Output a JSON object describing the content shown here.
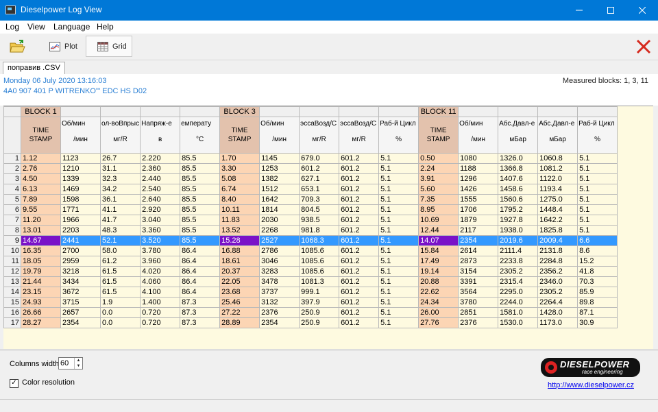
{
  "window": {
    "title": "Dieselpower Log View"
  },
  "menu": [
    "Log",
    "View",
    "Language",
    "Help"
  ],
  "toolbar": {
    "plot_label": "Plot",
    "grid_label": "Grid"
  },
  "file_tab": "поправив .CSV",
  "info": {
    "date": "Monday 06 July 2020 13:16:03",
    "ecu": "4A0 907 401 P  WITRENKO'''   EDC  HS D02",
    "measured_blocks": "Measured blocks: 1, 3, 11"
  },
  "blocks": [
    "BLOCK 1",
    "BLOCK 3",
    "BLOCK 11"
  ],
  "columns": [
    {
      "name": "TIME\nSTAMP",
      "unit": "",
      "ts": true
    },
    {
      "name": "Об/мин",
      "unit": "/мин"
    },
    {
      "name": "ол-воВпрыс",
      "unit": "мг/R"
    },
    {
      "name": "Напряж-е",
      "unit": "в"
    },
    {
      "name": "емперату",
      "unit": "°C"
    },
    {
      "name": "TIME\nSTAMP",
      "unit": "",
      "ts": true
    },
    {
      "name": "Об/мин",
      "unit": "/мин"
    },
    {
      "name": "эссаВозд/С",
      "unit": "мг/R"
    },
    {
      "name": "эссаВозд/С",
      "unit": "мг/R"
    },
    {
      "name": "Раб-й Цикл",
      "unit": "%"
    },
    {
      "name": "TIME\nSTAMP",
      "unit": "",
      "ts": true
    },
    {
      "name": "Об/мин",
      "unit": "/мин"
    },
    {
      "name": "Абс.Давл-е",
      "unit": "мБар"
    },
    {
      "name": "Абс.Давл-е",
      "unit": "мБар"
    },
    {
      "name": "Раб-й Цикл",
      "unit": "%"
    }
  ],
  "rows": [
    [
      "1.12",
      "1123",
      "26.7",
      "2.220",
      "85.5",
      "1.70",
      "1145",
      "679.0",
      "601.2",
      "5.1",
      "0.50",
      "1080",
      "1326.0",
      "1060.8",
      "5.1"
    ],
    [
      "2.76",
      "1210",
      "31.1",
      "2.360",
      "85.5",
      "3.30",
      "1253",
      "601.2",
      "601.2",
      "5.1",
      "2.24",
      "1188",
      "1366.8",
      "1081.2",
      "5.1"
    ],
    [
      "4.50",
      "1339",
      "32.3",
      "2.440",
      "85.5",
      "5.08",
      "1382",
      "627.1",
      "601.2",
      "5.1",
      "3.91",
      "1296",
      "1407.6",
      "1122.0",
      "5.1"
    ],
    [
      "6.13",
      "1469",
      "34.2",
      "2.540",
      "85.5",
      "6.74",
      "1512",
      "653.1",
      "601.2",
      "5.1",
      "5.60",
      "1426",
      "1458.6",
      "1193.4",
      "5.1"
    ],
    [
      "7.89",
      "1598",
      "36.1",
      "2.640",
      "85.5",
      "8.40",
      "1642",
      "709.3",
      "601.2",
      "5.1",
      "7.35",
      "1555",
      "1560.6",
      "1275.0",
      "5.1"
    ],
    [
      "9.55",
      "1771",
      "41.1",
      "2.920",
      "85.5",
      "10.11",
      "1814",
      "804.5",
      "601.2",
      "5.1",
      "8.95",
      "1706",
      "1795.2",
      "1448.4",
      "5.1"
    ],
    [
      "11.20",
      "1966",
      "41.7",
      "3.040",
      "85.5",
      "11.83",
      "2030",
      "938.5",
      "601.2",
      "5.1",
      "10.69",
      "1879",
      "1927.8",
      "1642.2",
      "5.1"
    ],
    [
      "13.01",
      "2203",
      "48.3",
      "3.360",
      "85.5",
      "13.52",
      "2268",
      "981.8",
      "601.2",
      "5.1",
      "12.44",
      "2117",
      "1938.0",
      "1825.8",
      "5.1"
    ],
    [
      "14.67",
      "2441",
      "52.1",
      "3.520",
      "85.5",
      "15.28",
      "2527",
      "1068.3",
      "601.2",
      "5.1",
      "14.07",
      "2354",
      "2019.6",
      "2009.4",
      "6.6"
    ],
    [
      "16.35",
      "2700",
      "58.0",
      "3.780",
      "86.4",
      "16.88",
      "2786",
      "1085.6",
      "601.2",
      "5.1",
      "15.84",
      "2614",
      "2111.4",
      "2131.8",
      "8.6"
    ],
    [
      "18.05",
      "2959",
      "61.2",
      "3.960",
      "86.4",
      "18.61",
      "3046",
      "1085.6",
      "601.2",
      "5.1",
      "17.49",
      "2873",
      "2233.8",
      "2284.8",
      "15.2"
    ],
    [
      "19.79",
      "3218",
      "61.5",
      "4.020",
      "86.4",
      "20.37",
      "3283",
      "1085.6",
      "601.2",
      "5.1",
      "19.14",
      "3154",
      "2305.2",
      "2356.2",
      "41.8"
    ],
    [
      "21.44",
      "3434",
      "61.5",
      "4.060",
      "86.4",
      "22.05",
      "3478",
      "1081.3",
      "601.2",
      "5.1",
      "20.88",
      "3391",
      "2315.4",
      "2346.0",
      "70.3"
    ],
    [
      "23.15",
      "3672",
      "61.5",
      "4.100",
      "86.4",
      "23.68",
      "3737",
      "999.1",
      "601.2",
      "5.1",
      "22.62",
      "3564",
      "2295.0",
      "2305.2",
      "85.9"
    ],
    [
      "24.93",
      "3715",
      "1.9",
      "1.400",
      "87.3",
      "25.46",
      "3132",
      "397.9",
      "601.2",
      "5.1",
      "24.34",
      "3780",
      "2244.0",
      "2264.4",
      "89.8"
    ],
    [
      "26.66",
      "2657",
      "0.0",
      "0.720",
      "87.3",
      "27.22",
      "2376",
      "250.9",
      "601.2",
      "5.1",
      "26.00",
      "2851",
      "1581.0",
      "1428.0",
      "87.1"
    ],
    [
      "28.27",
      "2354",
      "0.0",
      "0.720",
      "87.3",
      "28.89",
      "2354",
      "250.9",
      "601.2",
      "5.1",
      "27.76",
      "2376",
      "1530.0",
      "1173.0",
      "30.9"
    ]
  ],
  "selected_row": 9,
  "bottom": {
    "columns_width_label": "Columns width:",
    "columns_width_value": "60",
    "color_resolution_label": "Color resolution",
    "color_resolution_checked": true,
    "logo_text": "DIESELPOWER",
    "logo_sub": "race engineering",
    "link": "http://www.dieselpower.cz"
  },
  "colors": {
    "titlebar": "#0078d7",
    "timestamp_cell": "#fcd5b4",
    "block_header": "#e3c2ad",
    "selection": "#3399ff",
    "selected_timestamp": "#7a12c8",
    "grid_bg": "#fefae0",
    "info_text": "#2a7fd4"
  },
  "icons": [
    "app-icon",
    "open-folder-icon",
    "plot-icon",
    "grid-icon",
    "close-x-icon",
    "minimize-icon",
    "maximize-icon",
    "close-window-icon"
  ]
}
